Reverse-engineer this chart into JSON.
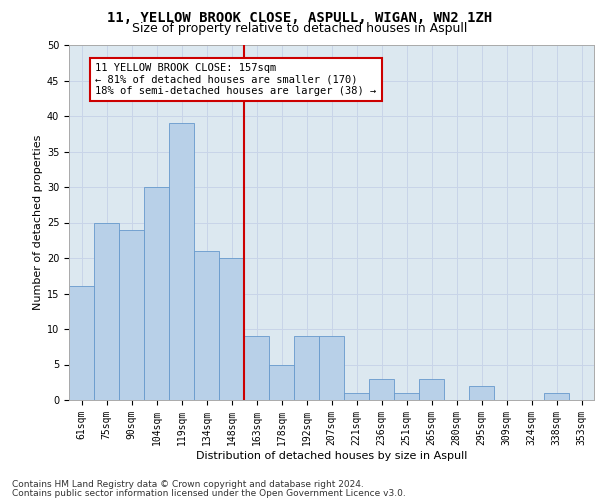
{
  "title": "11, YELLOW BROOK CLOSE, ASPULL, WIGAN, WN2 1ZH",
  "subtitle": "Size of property relative to detached houses in Aspull",
  "xlabel": "Distribution of detached houses by size in Aspull",
  "ylabel": "Number of detached properties",
  "categories": [
    "61sqm",
    "75sqm",
    "90sqm",
    "104sqm",
    "119sqm",
    "134sqm",
    "148sqm",
    "163sqm",
    "178sqm",
    "192sqm",
    "207sqm",
    "221sqm",
    "236sqm",
    "251sqm",
    "265sqm",
    "280sqm",
    "295sqm",
    "309sqm",
    "324sqm",
    "338sqm",
    "353sqm"
  ],
  "values": [
    16,
    25,
    24,
    30,
    39,
    21,
    20,
    9,
    5,
    9,
    9,
    1,
    3,
    1,
    3,
    0,
    2,
    0,
    0,
    1,
    0
  ],
  "bar_color": "#b8d0e8",
  "bar_edge_color": "#6699cc",
  "vline_color": "#cc0000",
  "annotation_text": "11 YELLOW BROOK CLOSE: 157sqm\n← 81% of detached houses are smaller (170)\n18% of semi-detached houses are larger (38) →",
  "annotation_box_color": "#ffffff",
  "annotation_box_edge": "#cc0000",
  "ylim": [
    0,
    50
  ],
  "yticks": [
    0,
    5,
    10,
    15,
    20,
    25,
    30,
    35,
    40,
    45,
    50
  ],
  "grid_color": "#c8d4e8",
  "background_color": "#dce8f0",
  "footer_line1": "Contains HM Land Registry data © Crown copyright and database right 2024.",
  "footer_line2": "Contains public sector information licensed under the Open Government Licence v3.0.",
  "title_fontsize": 10,
  "subtitle_fontsize": 9,
  "axis_label_fontsize": 8,
  "tick_fontsize": 7,
  "annotation_fontsize": 7.5,
  "footer_fontsize": 6.5
}
